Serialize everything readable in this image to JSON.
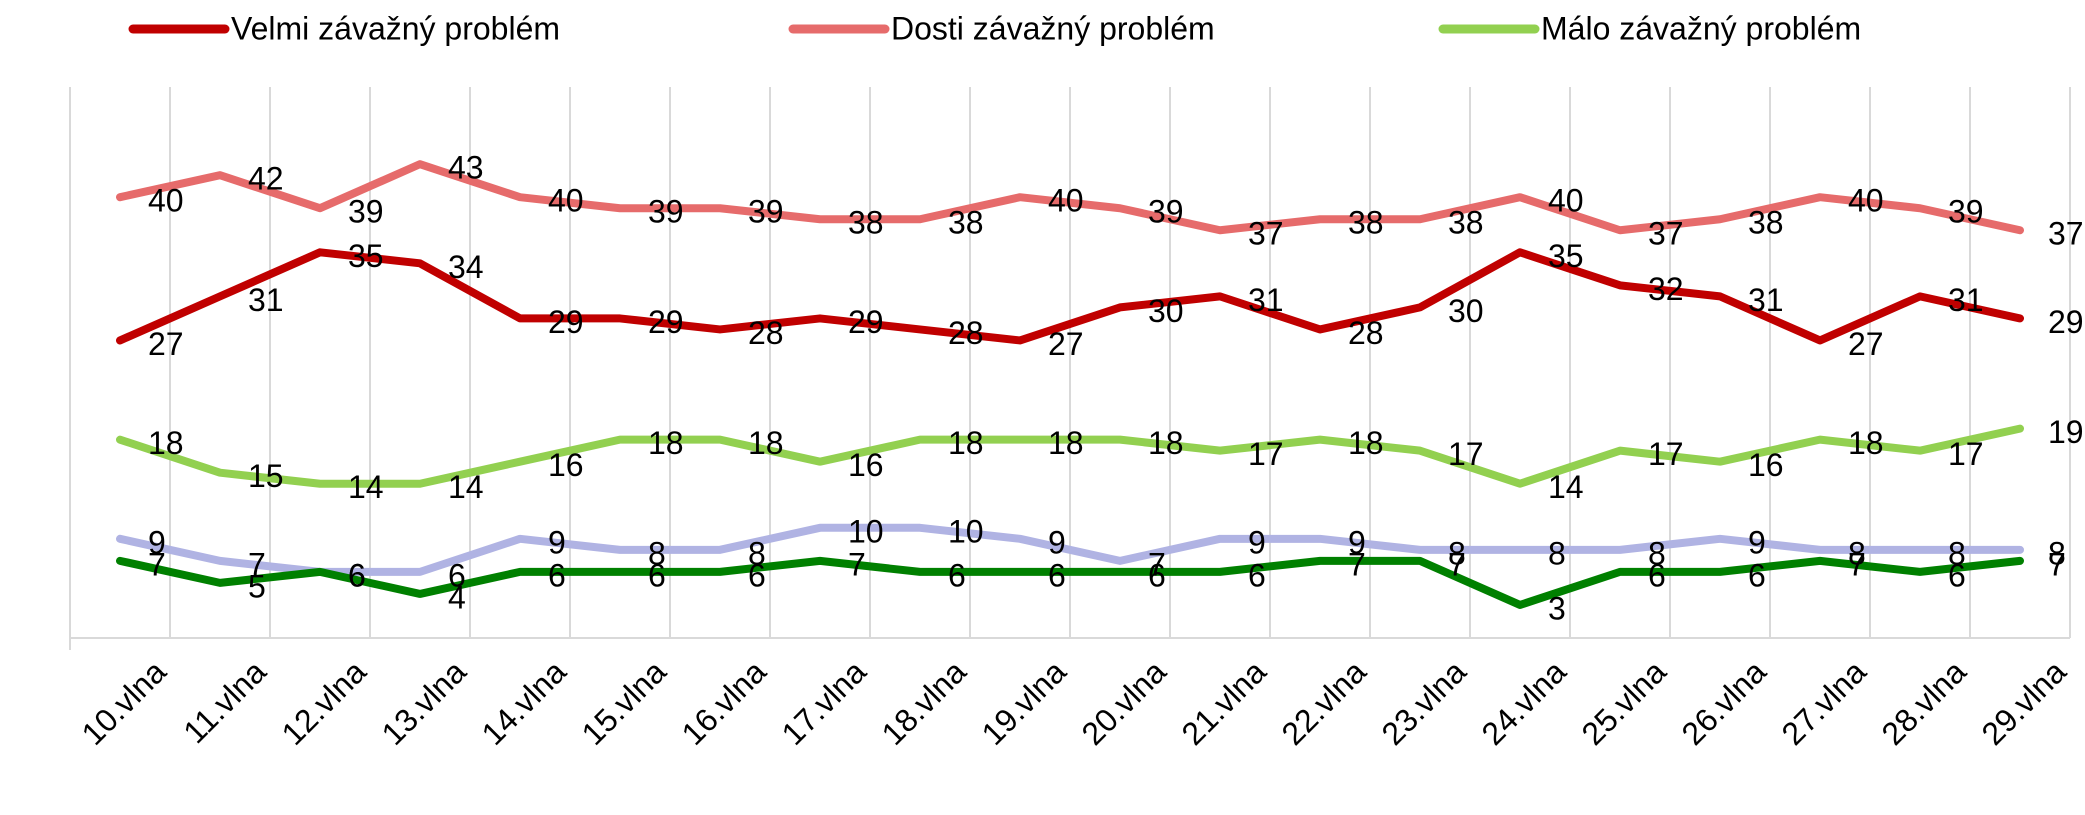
{
  "chart_data": {
    "type": "line",
    "categories": [
      "10.vlna",
      "11.vlna",
      "12.vlna",
      "13.vlna",
      "14.vlna",
      "15.vlna",
      "16.vlna",
      "17.vlna",
      "18.vlna",
      "19.vlna",
      "20.vlna",
      "21.vlna",
      "22.vlna",
      "23.vlna",
      "24.vlna",
      "25.vlna",
      "26.vlna",
      "27.vlna",
      "28.vlna",
      "29.vlna"
    ],
    "series": [
      {
        "name": "Velmi závažný problém",
        "color": "#c00000",
        "values": [
          27,
          31,
          35,
          34,
          29,
          29,
          28,
          29,
          28,
          27,
          30,
          31,
          28,
          30,
          35,
          32,
          31,
          27,
          31,
          29
        ]
      },
      {
        "name": "Dosti závažný problém",
        "color": "#e66b6b",
        "values": [
          40,
          42,
          39,
          43,
          40,
          39,
          39,
          38,
          38,
          40,
          39,
          37,
          38,
          38,
          40,
          37,
          38,
          40,
          39,
          37
        ]
      },
      {
        "name": "Málo závažný problém",
        "color": "#92d050",
        "values": [
          18,
          15,
          14,
          14,
          16,
          18,
          18,
          16,
          18,
          18,
          18,
          17,
          18,
          17,
          14,
          17,
          16,
          18,
          17,
          19
        ]
      },
      {
        "color": "#b0b3e3",
        "values": [
          9,
          7,
          6,
          6,
          9,
          8,
          8,
          10,
          10,
          9,
          7,
          9,
          9,
          8,
          8,
          8,
          9,
          8,
          8,
          8
        ]
      },
      {
        "color": "#008000",
        "values": [
          7,
          5,
          6,
          4,
          6,
          6,
          6,
          7,
          6,
          6,
          6,
          6,
          7,
          7,
          3,
          6,
          6,
          7,
          6,
          7
        ]
      }
    ],
    "ylim": [
      0,
      50
    ]
  }
}
